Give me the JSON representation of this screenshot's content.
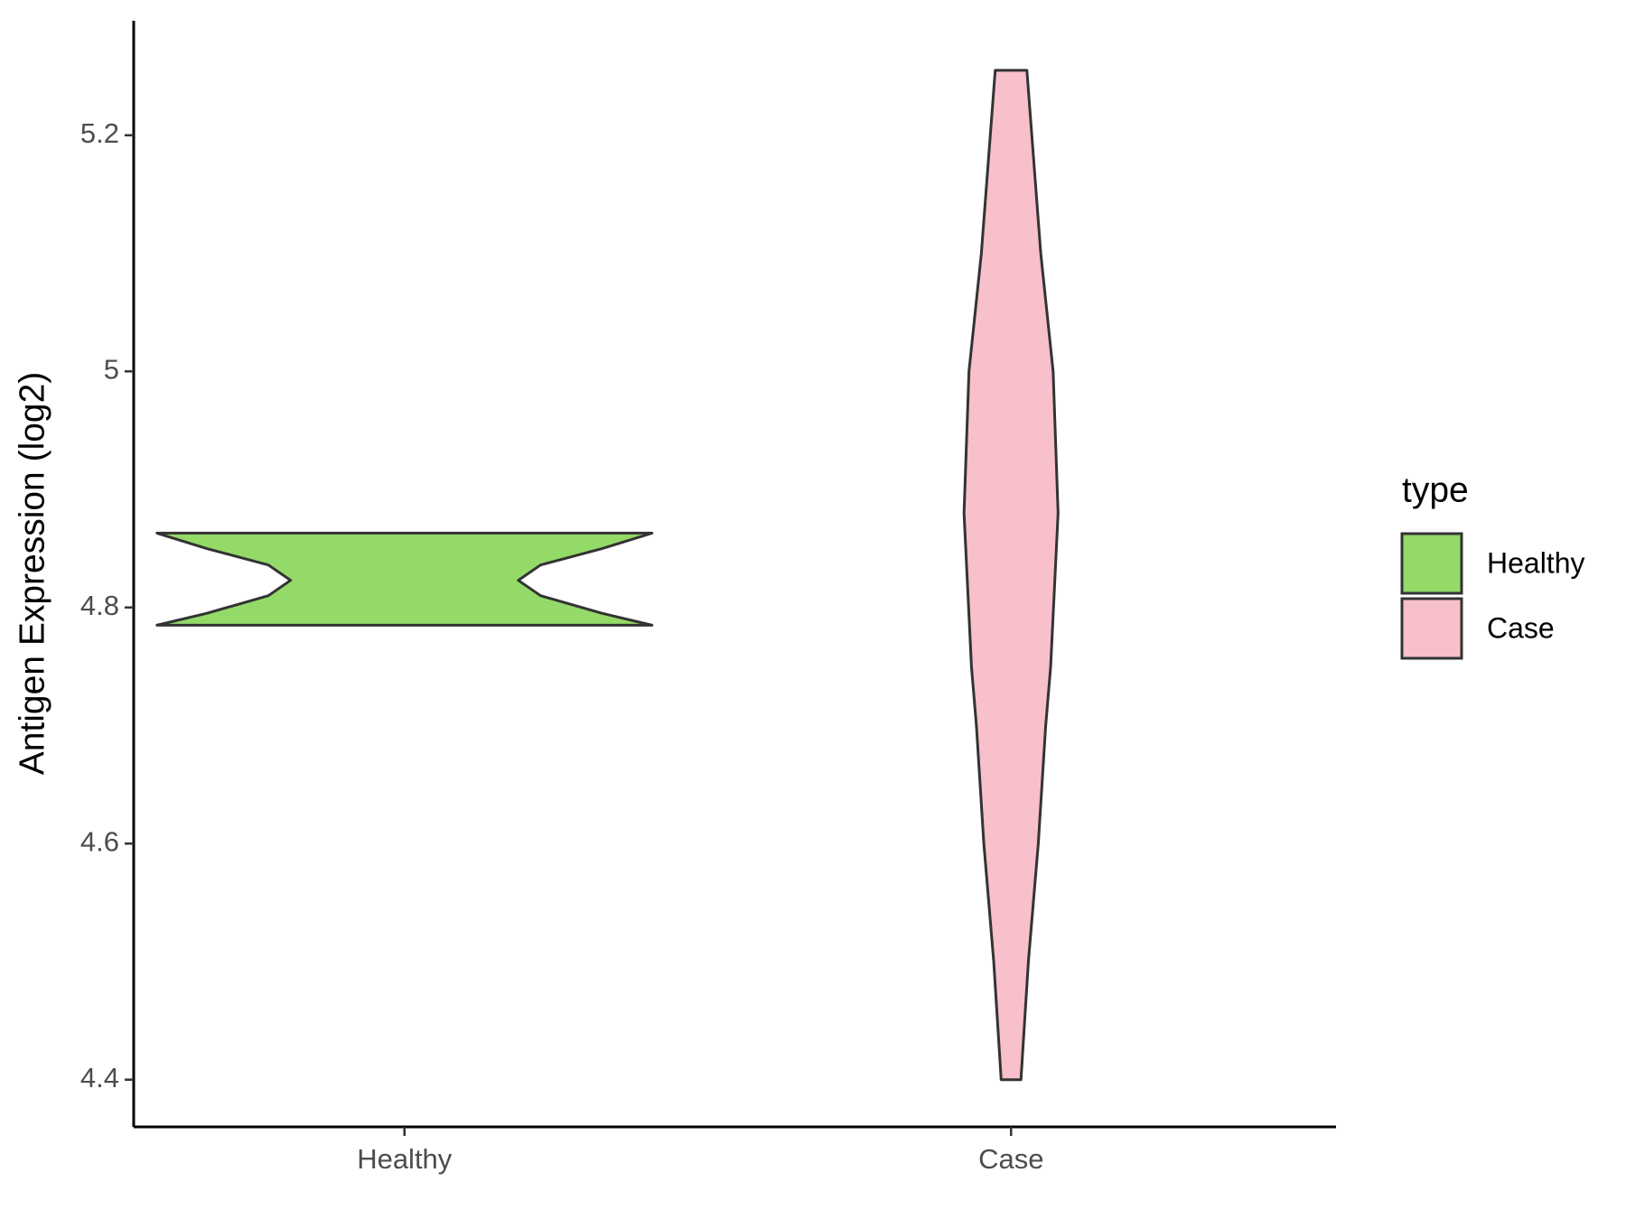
{
  "chart_data": {
    "type": "violin",
    "y_label": "Antigen Expression (log2)",
    "categories": [
      "Healthy",
      "Case"
    ],
    "series": [
      {
        "name": "Healthy",
        "color": "#93da69",
        "y": [
          4.785,
          4.795,
          4.81,
          4.823,
          4.836,
          4.85,
          4.863
        ],
        "widths": [
          1.0,
          0.8,
          0.55,
          0.46,
          0.55,
          0.8,
          1.0
        ]
      },
      {
        "name": "Case",
        "color": "#f7c0cb",
        "y": [
          4.4,
          4.5,
          4.6,
          4.7,
          4.75,
          4.88,
          5.0,
          5.1,
          5.255
        ],
        "widths": [
          0.04,
          0.07,
          0.11,
          0.14,
          0.16,
          0.19,
          0.17,
          0.12,
          0.064
        ]
      }
    ],
    "ylim": [
      4.36,
      5.297
    ],
    "yticks": [
      4.4,
      4.6,
      4.8,
      5.0,
      5.2
    ],
    "legend_title": "type",
    "legend_position": "right"
  }
}
